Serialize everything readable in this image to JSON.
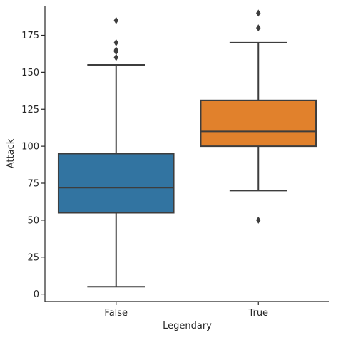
{
  "chart_data": {
    "type": "box",
    "title": "",
    "xlabel": "Legendary",
    "ylabel": "Attack",
    "categories": [
      "False",
      "True"
    ],
    "colors": [
      "#3274A1",
      "#E1812C"
    ],
    "ylim": [
      -5,
      195
    ],
    "yticks": [
      0,
      25,
      50,
      75,
      100,
      125,
      150,
      175
    ],
    "ytick_labels": [
      "0",
      "25",
      "50",
      "75",
      "100",
      "125",
      "150",
      "175"
    ],
    "grid": false,
    "legend": "none",
    "boxes": [
      {
        "category": "False",
        "whisker_low": 5,
        "q1": 55,
        "median": 72,
        "q3": 95,
        "whisker_high": 155,
        "outliers": [
          160,
          164,
          165,
          170,
          185
        ]
      },
      {
        "category": "True",
        "whisker_low": 70,
        "q1": 100,
        "median": 110,
        "q3": 131,
        "whisker_high": 170,
        "outliers": [
          50,
          180,
          190
        ]
      }
    ]
  }
}
